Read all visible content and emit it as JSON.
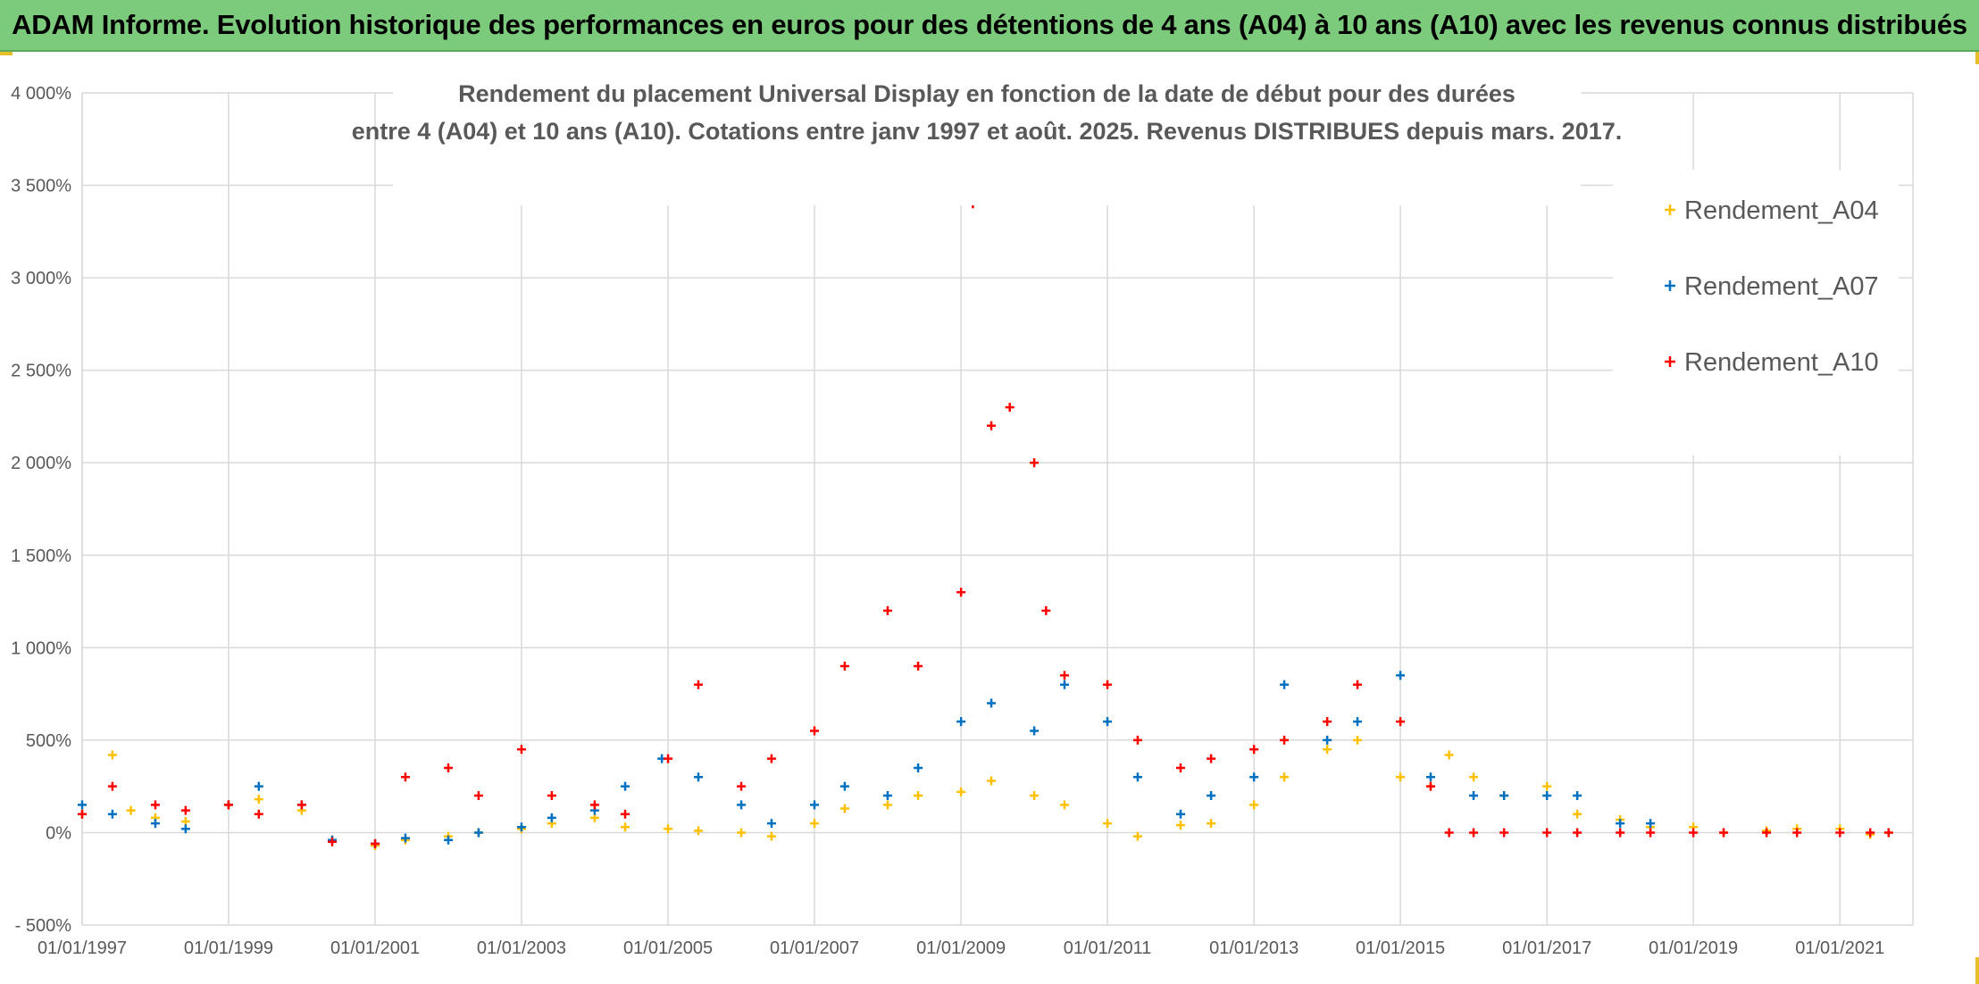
{
  "banner": {
    "text": "ADAM Informe. Evolution historique des performances en euros pour des détentions de 4 ans (A04) à 10 ans (A10) avec les revenus connus distribués"
  },
  "chart_data": {
    "type": "scatter",
    "title": "Rendement du placement Universal Display en fonction de la date de début pour des durées",
    "subtitle": "entre 4 (A04) et 10 ans (A10). Cotations entre janv 1997 et août. 2025. Revenus DISTRIBUES depuis mars. 2017.",
    "xlabel": "",
    "ylabel": "",
    "marker": "+",
    "grid": true,
    "legend_position": "top-right",
    "x_range": [
      "1997-01-01",
      "2021-12-31"
    ],
    "ylim": [
      -500,
      4000
    ],
    "y_ticks": [
      -500,
      0,
      500,
      1000,
      1500,
      2000,
      2500,
      3000,
      3500,
      4000
    ],
    "y_tick_labels": [
      "- 500%",
      "0%",
      "500%",
      "1 000%",
      "1 500%",
      "2 000%",
      "2 500%",
      "3 000%",
      "3 500%",
      "4 000%"
    ],
    "x_ticks": [
      "1997-01-01",
      "1999-01-01",
      "2001-01-01",
      "2003-01-01",
      "2005-01-01",
      "2007-01-01",
      "2009-01-01",
      "2011-01-01",
      "2013-01-01",
      "2015-01-01",
      "2017-01-01",
      "2019-01-01",
      "2021-01-01"
    ],
    "x_tick_labels": [
      "01/01/1997",
      "01/01/1999",
      "01/01/2001",
      "01/01/2003",
      "01/01/2005",
      "01/01/2007",
      "01/01/2009",
      "01/01/2011",
      "01/01/2013",
      "01/01/2015",
      "01/01/2017",
      "01/01/2019",
      "01/01/2021"
    ],
    "series": [
      {
        "name": "Rendement_A04",
        "color": "#ffc000",
        "x": [
          "1997-01-01",
          "1997-06-01",
          "1997-09-01",
          "1998-01-01",
          "1998-06-01",
          "1999-01-01",
          "1999-06-01",
          "2000-01-01",
          "2000-06-01",
          "2001-01-01",
          "2001-06-01",
          "2002-01-01",
          "2002-06-01",
          "2003-01-01",
          "2003-06-01",
          "2004-01-01",
          "2004-06-01",
          "2005-01-01",
          "2005-06-01",
          "2006-01-01",
          "2006-06-01",
          "2007-01-01",
          "2007-06-01",
          "2008-01-01",
          "2008-06-01",
          "2009-01-01",
          "2009-06-01",
          "2010-01-01",
          "2010-06-01",
          "2011-01-01",
          "2011-06-01",
          "2012-01-01",
          "2012-06-01",
          "2013-01-01",
          "2013-06-01",
          "2014-01-01",
          "2014-06-01",
          "2015-01-01",
          "2015-06-01",
          "2015-09-01",
          "2016-01-01",
          "2016-06-01",
          "2017-01-01",
          "2017-06-01",
          "2018-01-01",
          "2018-06-01",
          "2019-01-01",
          "2019-06-01",
          "2020-01-01",
          "2020-06-01",
          "2021-01-01",
          "2021-06-01",
          "2021-09-01"
        ],
        "values": [
          100,
          420,
          120,
          80,
          60,
          150,
          180,
          120,
          -40,
          -70,
          -40,
          -20,
          0,
          20,
          50,
          80,
          30,
          20,
          10,
          0,
          -20,
          50,
          130,
          150,
          200,
          220,
          280,
          200,
          150,
          50,
          -20,
          40,
          50,
          150,
          300,
          450,
          500,
          300,
          250,
          420,
          300,
          200,
          250,
          100,
          70,
          30,
          30,
          0,
          10,
          20,
          20,
          -10,
          0
        ]
      },
      {
        "name": "Rendement_A07",
        "color": "#0070c0",
        "x": [
          "1997-01-01",
          "1997-06-01",
          "1998-01-01",
          "1998-06-01",
          "1999-01-01",
          "1999-06-01",
          "2000-01-01",
          "2000-06-01",
          "2001-01-01",
          "2001-06-01",
          "2002-01-01",
          "2002-06-01",
          "2003-01-01",
          "2003-06-01",
          "2004-01-01",
          "2004-06-01",
          "2004-12-01",
          "2005-06-01",
          "2006-01-01",
          "2006-06-01",
          "2007-01-01",
          "2007-06-01",
          "2008-01-01",
          "2008-06-01",
          "2009-01-01",
          "2009-06-01",
          "2010-01-01",
          "2010-06-01",
          "2011-01-01",
          "2011-06-01",
          "2012-01-01",
          "2012-06-01",
          "2013-01-01",
          "2013-06-01",
          "2014-01-01",
          "2014-06-01",
          "2015-01-01",
          "2015-06-01",
          "2016-01-01",
          "2016-06-01",
          "2017-01-01",
          "2017-06-01",
          "2018-01-01",
          "2018-06-01"
        ],
        "values": [
          150,
          100,
          50,
          20,
          150,
          250,
          150,
          -40,
          -60,
          -30,
          -40,
          0,
          30,
          80,
          120,
          250,
          400,
          300,
          150,
          50,
          150,
          250,
          200,
          350,
          600,
          700,
          550,
          800,
          600,
          300,
          100,
          200,
          300,
          800,
          500,
          600,
          850,
          300,
          200,
          200,
          200,
          200,
          50,
          50
        ]
      },
      {
        "name": "Rendement_A10",
        "color": "#ff0000",
        "x": [
          "1997-01-01",
          "1997-06-01",
          "1998-01-01",
          "1998-06-01",
          "1999-01-01",
          "1999-06-01",
          "2000-01-01",
          "2000-06-01",
          "2001-01-01",
          "2001-06-01",
          "2002-01-01",
          "2002-06-01",
          "2003-01-01",
          "2003-06-01",
          "2004-01-01",
          "2004-06-01",
          "2005-01-01",
          "2005-06-01",
          "2006-01-01",
          "2006-06-01",
          "2007-01-01",
          "2007-06-01",
          "2008-01-01",
          "2008-06-01",
          "2009-01-01",
          "2009-03-01",
          "2009-06-01",
          "2009-09-01",
          "2010-01-01",
          "2010-03-01",
          "2010-06-01",
          "2011-01-01",
          "2011-06-01",
          "2012-01-01",
          "2012-06-01",
          "2013-01-01",
          "2013-06-01",
          "2014-01-01",
          "2014-06-01",
          "2015-01-01",
          "2015-06-01",
          "2015-09-01",
          "2016-01-01",
          "2016-06-01",
          "2017-01-01",
          "2017-06-01",
          "2018-01-01",
          "2018-06-01",
          "2019-01-01",
          "2019-06-01",
          "2020-01-01",
          "2020-06-01",
          "2021-01-01",
          "2021-06-01",
          "2021-09-01"
        ],
        "values": [
          100,
          250,
          150,
          120,
          150,
          100,
          150,
          -50,
          -60,
          300,
          350,
          200,
          450,
          200,
          150,
          100,
          400,
          800,
          250,
          400,
          550,
          900,
          1200,
          900,
          1300,
          3400,
          2200,
          2300,
          2000,
          1200,
          850,
          800,
          500,
          350,
          400,
          450,
          500,
          600,
          800,
          600,
          250,
          0,
          0,
          0,
          0,
          0,
          0,
          0,
          0,
          0,
          0,
          0,
          0,
          0,
          0
        ]
      }
    ]
  }
}
